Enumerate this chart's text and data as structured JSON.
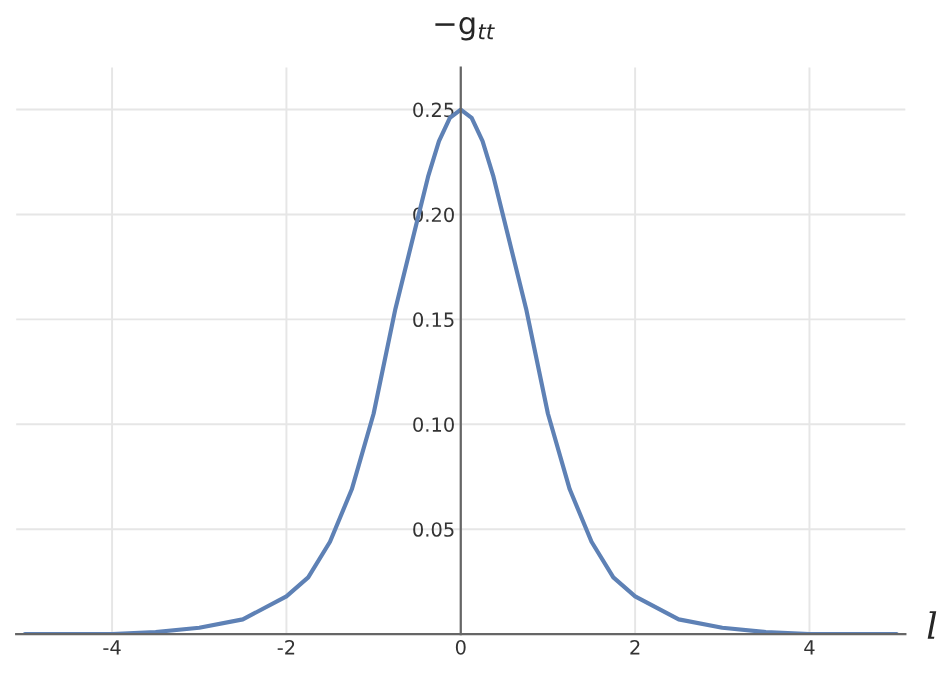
{
  "chart_data": {
    "type": "line",
    "xlabel": "l",
    "ylabel": "−g$_{tt}$",
    "x": [
      -5,
      -4.5,
      -4,
      -3.5,
      -3,
      -2.5,
      -2,
      -1.75,
      -1.5,
      -1.25,
      -1,
      -0.75,
      -0.5,
      -0.375,
      -0.25,
      -0.125,
      0,
      0.125,
      0.25,
      0.375,
      0.5,
      0.75,
      1,
      1.25,
      1.5,
      1.75,
      2,
      2.5,
      3,
      3.5,
      4,
      4.5,
      5
    ],
    "series": [
      {
        "color": "#5e81b5",
        "values": [
          0.0,
          0.0,
          0.0,
          0.001,
          0.003,
          0.007,
          0.018,
          0.027,
          0.044,
          0.069,
          0.105,
          0.155,
          0.197,
          0.218,
          0.235,
          0.246,
          0.25,
          0.246,
          0.235,
          0.218,
          0.197,
          0.155,
          0.105,
          0.069,
          0.044,
          0.027,
          0.018,
          0.007,
          0.003,
          0.001,
          0.0,
          0.0,
          0.0
        ]
      }
    ],
    "xlim": [
      -5.1,
      5.1
    ],
    "ylim": [
      0,
      0.27
    ],
    "xticks": [
      -4,
      -2,
      0,
      2,
      4
    ],
    "yticks": [
      0.05,
      {
        "value": 0.1,
        "label": "0.10"
      },
      0.15,
      {
        "value": 0.2,
        "label": "0.20"
      },
      0.25
    ],
    "grid": true,
    "legend": false,
    "marker": "none",
    "line_style": "solid"
  }
}
